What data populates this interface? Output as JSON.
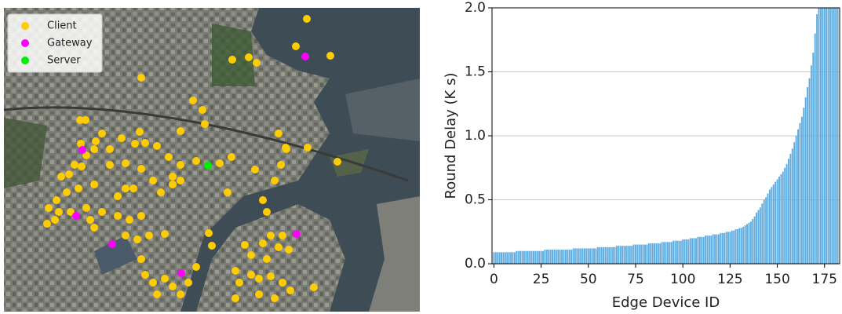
{
  "chart_data": [
    {
      "type": "scatter",
      "xlim": [
        5,
        535
      ],
      "ylim": [
        397,
        10
      ],
      "series": [
        {
          "name": "Client",
          "color": "#ffcc00",
          "x": [
            391,
            296,
            317,
            327,
            377,
            421,
            180,
            246,
            258,
            102,
            109,
            230,
            261,
            178,
            155,
            130,
            122,
            103,
            120,
            110,
            95,
            88,
            104,
            78,
            140,
            172,
            185,
            200,
            215,
            230,
            250,
            280,
            295,
            355,
            364,
            392,
            430,
            358,
            325,
            350,
            365,
            220,
            230,
            140,
            160,
            180,
            195,
            205,
            170,
            160,
            150,
            120,
            100,
            85,
            72,
            62,
            75,
            90,
            110,
            130,
            150,
            165,
            180,
            60,
            70,
            115,
            160,
            175,
            190,
            210,
            120,
            290,
            335,
            340,
            266,
            270,
            312,
            320,
            335,
            345,
            360,
            368,
            355,
            340,
            300,
            305,
            320,
            330,
            345,
            360,
            370,
            185,
            195,
            210,
            220,
            200,
            230,
            180,
            240,
            330,
            350,
            400,
            250,
            220,
            300
          ],
          "y": [
            24,
            76,
            73,
            80,
            59,
            71,
            99,
            128,
            140,
            153,
            153,
            167,
            158,
            168,
            176,
            170,
            180,
            183,
            190,
            198,
            210,
            222,
            212,
            225,
            190,
            183,
            182,
            186,
            200,
            210,
            205,
            208,
            200,
            170,
            188,
            188,
            206,
            210,
            216,
            230,
            190,
            225,
            230,
            210,
            208,
            215,
            230,
            245,
            240,
            240,
            250,
            235,
            240,
            245,
            255,
            265,
            270,
            270,
            265,
            270,
            275,
            280,
            275,
            285,
            280,
            280,
            300,
            305,
            300,
            298,
            290,
            245,
            255,
            270,
            297,
            313,
            312,
            325,
            310,
            300,
            300,
            318,
            315,
            330,
            345,
            360,
            350,
            355,
            352,
            360,
            370,
            350,
            360,
            355,
            365,
            375,
            375,
            330,
            360,
            375,
            380,
            366,
            340,
            235,
            380
          ]
        },
        {
          "name": "Gateway",
          "color": "#ff00ff",
          "x": [
            389,
            105,
            97,
            143,
            231,
            378
          ],
          "y": [
            72,
            191,
            275,
            311,
            348,
            298
          ]
        },
        {
          "name": "Server",
          "color": "#00ee00",
          "x": [
            265
          ],
          "y": [
            211
          ]
        }
      ]
    },
    {
      "type": "bar",
      "xlabel": "Edge Device ID",
      "ylabel": "Round Delay (K s)",
      "color": "#5dade2",
      "xlim": [
        -1,
        183
      ],
      "ylim": [
        0,
        2
      ],
      "xticks": [
        0,
        25,
        50,
        75,
        100,
        125,
        150,
        175
      ],
      "yticks": [
        {
          "value": 0,
          "label": "0.0"
        },
        0.5,
        {
          "value": 1,
          "label": "1.0"
        },
        1.5,
        {
          "value": 2,
          "label": "2.0"
        }
      ],
      "grid": true,
      "x": [
        0,
        1,
        2,
        3,
        4,
        5,
        6,
        7,
        8,
        9,
        10,
        11,
        12,
        13,
        14,
        15,
        16,
        17,
        18,
        19,
        20,
        21,
        22,
        23,
        24,
        25,
        26,
        27,
        28,
        29,
        30,
        31,
        32,
        33,
        34,
        35,
        36,
        37,
        38,
        39,
        40,
        41,
        42,
        43,
        44,
        45,
        46,
        47,
        48,
        49,
        50,
        51,
        52,
        53,
        54,
        55,
        56,
        57,
        58,
        59,
        60,
        61,
        62,
        63,
        64,
        65,
        66,
        67,
        68,
        69,
        70,
        71,
        72,
        73,
        74,
        75,
        76,
        77,
        78,
        79,
        80,
        81,
        82,
        83,
        84,
        85,
        86,
        87,
        88,
        89,
        90,
        91,
        92,
        93,
        94,
        95,
        96,
        97,
        98,
        99,
        100,
        101,
        102,
        103,
        104,
        105,
        106,
        107,
        108,
        109,
        110,
        111,
        112,
        113,
        114,
        115,
        116,
        117,
        118,
        119,
        120,
        121,
        122,
        123,
        124,
        125,
        126,
        127,
        128,
        129,
        130,
        131,
        132,
        133,
        134,
        135,
        136,
        137,
        138,
        139,
        140,
        141,
        142,
        143,
        144,
        145,
        146,
        147,
        148,
        149,
        150,
        151,
        152,
        153,
        154,
        155,
        156,
        157,
        158,
        159,
        160,
        161,
        162,
        163,
        164,
        165,
        166,
        167,
        168,
        169,
        170,
        171,
        172,
        173,
        174,
        175,
        176,
        177,
        178,
        179,
        180,
        181,
        182
      ],
      "values": [
        0.09,
        0.09,
        0.09,
        0.09,
        0.09,
        0.09,
        0.09,
        0.09,
        0.09,
        0.09,
        0.09,
        0.09,
        0.1,
        0.1,
        0.1,
        0.1,
        0.1,
        0.1,
        0.1,
        0.1,
        0.1,
        0.1,
        0.1,
        0.1,
        0.1,
        0.1,
        0.1,
        0.11,
        0.11,
        0.11,
        0.11,
        0.11,
        0.11,
        0.11,
        0.11,
        0.11,
        0.11,
        0.11,
        0.11,
        0.11,
        0.11,
        0.11,
        0.12,
        0.12,
        0.12,
        0.12,
        0.12,
        0.12,
        0.12,
        0.12,
        0.12,
        0.12,
        0.12,
        0.12,
        0.12,
        0.13,
        0.13,
        0.13,
        0.13,
        0.13,
        0.13,
        0.13,
        0.13,
        0.13,
        0.13,
        0.14,
        0.14,
        0.14,
        0.14,
        0.14,
        0.14,
        0.14,
        0.14,
        0.14,
        0.15,
        0.15,
        0.15,
        0.15,
        0.15,
        0.15,
        0.15,
        0.15,
        0.16,
        0.16,
        0.16,
        0.16,
        0.16,
        0.16,
        0.16,
        0.17,
        0.17,
        0.17,
        0.17,
        0.17,
        0.17,
        0.18,
        0.18,
        0.18,
        0.18,
        0.18,
        0.19,
        0.19,
        0.19,
        0.19,
        0.2,
        0.2,
        0.2,
        0.2,
        0.21,
        0.21,
        0.21,
        0.21,
        0.22,
        0.22,
        0.22,
        0.22,
        0.23,
        0.23,
        0.23,
        0.23,
        0.24,
        0.24,
        0.24,
        0.25,
        0.25,
        0.25,
        0.26,
        0.26,
        0.27,
        0.27,
        0.28,
        0.28,
        0.29,
        0.3,
        0.31,
        0.32,
        0.33,
        0.35,
        0.37,
        0.4,
        0.42,
        0.44,
        0.47,
        0.5,
        0.52,
        0.55,
        0.58,
        0.6,
        0.62,
        0.64,
        0.66,
        0.68,
        0.7,
        0.72,
        0.75,
        0.78,
        0.82,
        0.86,
        0.9,
        0.95,
        1.0,
        1.05,
        1.1,
        1.15,
        1.22,
        1.3,
        1.38,
        1.45,
        1.55,
        1.65,
        1.8,
        1.95,
        2,
        2,
        2,
        2,
        2,
        2,
        2,
        2,
        2,
        2,
        2
      ]
    }
  ]
}
